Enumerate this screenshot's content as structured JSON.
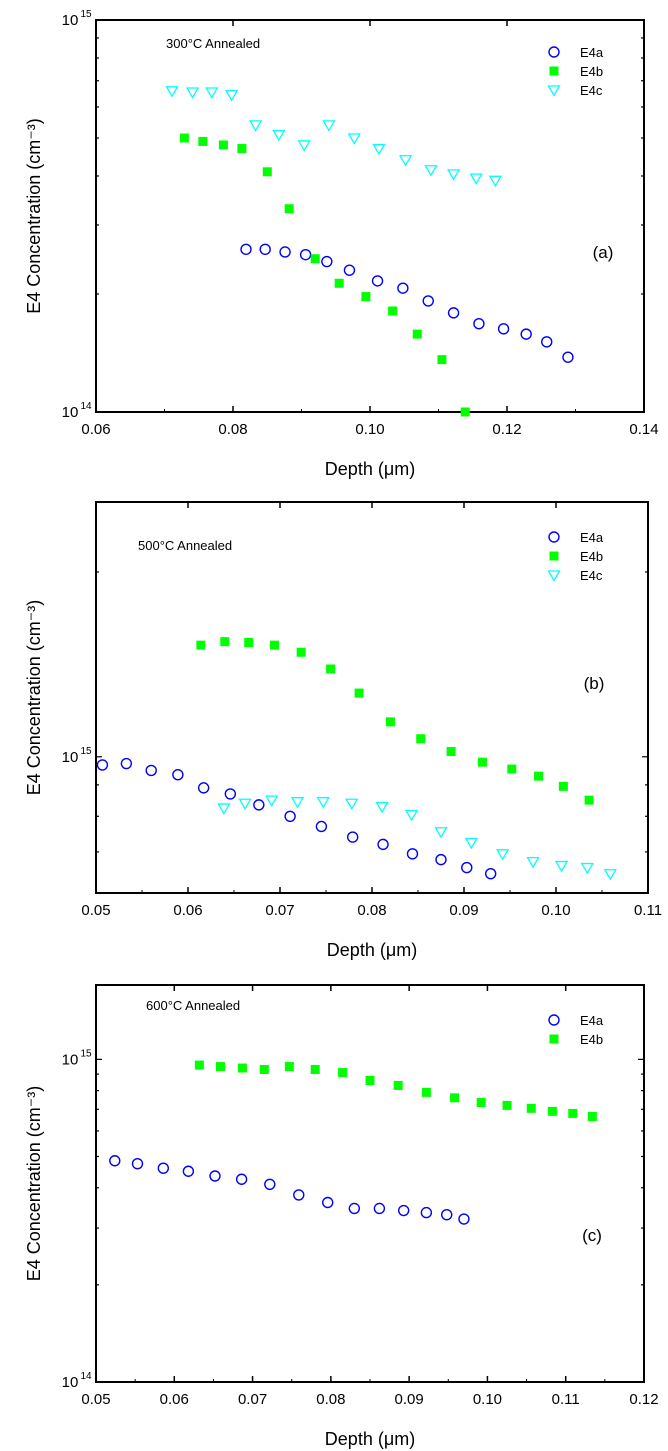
{
  "figure": {
    "xlabel": "Depth (μm)",
    "ylabel": "E4 Concentration (cm⁻³)"
  },
  "chart_data": [
    {
      "type": "scatter",
      "panel_label": "(a)",
      "annotation": "300°C Annealed",
      "xlabel": "Depth (μm)",
      "ylabel": "E4 Concentration (cm⁻³)",
      "xlim": [
        0.06,
        0.14
      ],
      "ylim": [
        100000000000000.0,
        1000000000000000.0
      ],
      "yscale": "log",
      "xticks": [
        0.06,
        0.08,
        0.1,
        0.12,
        0.14
      ],
      "xtick_labels": [
        "0.06",
        "0.08",
        "0.10",
        "0.12",
        "0.14"
      ],
      "yticks": [
        {
          "value": 1000000000000000.0,
          "base": "10",
          "exp": "15"
        },
        {
          "value": 100000000000000.0,
          "base": "10",
          "exp": "14"
        }
      ],
      "legend_position": "top-right",
      "series": [
        {
          "name": "E4a",
          "marker": "circle-open",
          "color": "#0000ff",
          "x": [
            0.0819,
            0.0847,
            0.0876,
            0.0906,
            0.0937,
            0.097,
            0.1011,
            0.1048,
            0.1085,
            0.1122,
            0.1159,
            0.1195,
            0.1228,
            0.1258,
            0.1289
          ],
          "y": [
            260000000000000.0,
            260000000000000.0,
            256000000000000.0,
            252000000000000.0,
            242000000000000.0,
            230000000000000.0,
            216000000000000.0,
            207000000000000.0,
            192000000000000.0,
            179000000000000.0,
            168000000000000.0,
            163000000000000.0,
            158000000000000.0,
            151000000000000.0,
            138000000000000.0
          ]
        },
        {
          "name": "E4b",
          "marker": "square-filled",
          "color": "#00ff00",
          "x": [
            0.0729,
            0.0756,
            0.0786,
            0.0813,
            0.085,
            0.0882,
            0.092,
            0.0955,
            0.0994,
            0.1033,
            0.1069,
            0.1105,
            0.1139
          ],
          "y": [
            500000000000000.0,
            490000000000000.0,
            480000000000000.0,
            470000000000000.0,
            410000000000000.0,
            330000000000000.0,
            246000000000000.0,
            213000000000000.0,
            197000000000000.0,
            181000000000000.0,
            158000000000000.0,
            136000000000000.0,
            100000000000000.0
          ]
        },
        {
          "name": "E4c",
          "marker": "triangle-down-open",
          "color": "#00ffff",
          "x": [
            0.0711,
            0.0741,
            0.0769,
            0.0798,
            0.0833,
            0.0867,
            0.0904,
            0.094,
            0.0977,
            0.1013,
            0.1052,
            0.1089,
            0.1122,
            0.1155,
            0.1183
          ],
          "y": [
            660000000000000.0,
            655000000000000.0,
            655000000000000.0,
            645000000000000.0,
            540000000000000.0,
            510000000000000.0,
            480000000000000.0,
            540000000000000.0,
            500000000000000.0,
            470000000000000.0,
            440000000000000.0,
            415000000000000.0,
            405000000000000.0,
            395000000000000.0,
            390000000000000.0
          ]
        }
      ]
    },
    {
      "type": "scatter",
      "panel_label": "(b)",
      "annotation": "500°C Annealed",
      "xlabel": "Depth (μm)",
      "ylabel": "E4 Concentration (cm⁻³)",
      "xlim": [
        0.05,
        0.11
      ],
      "ylim": [
        600000000000000.0,
        2600000000000000.0
      ],
      "yscale": "log",
      "xticks": [
        0.05,
        0.06,
        0.07,
        0.08,
        0.09,
        0.1,
        0.11
      ],
      "xtick_labels": [
        "0.05",
        "0.06",
        "0.07",
        "0.08",
        "0.09",
        "0.10",
        "0.11"
      ],
      "yticks": [
        {
          "value": 1000000000000000.0,
          "base": "10",
          "exp": "15"
        }
      ],
      "legend_position": "top-right",
      "series": [
        {
          "name": "E4a",
          "marker": "circle-open",
          "color": "#0000ff",
          "x": [
            0.0507,
            0.0533,
            0.056,
            0.0589,
            0.0617,
            0.0646,
            0.0677,
            0.0711,
            0.0745,
            0.0779,
            0.0812,
            0.0844,
            0.0875,
            0.0903,
            0.0929
          ],
          "y": [
            970000000000000.0,
            975000000000000.0,
            950000000000000.0,
            935000000000000.0,
            890000000000000.0,
            870000000000000.0,
            835000000000000.0,
            800000000000000.0,
            770000000000000.0,
            740000000000000.0,
            720000000000000.0,
            695000000000000.0,
            680000000000000.0,
            660000000000000.0,
            645000000000000.0
          ]
        },
        {
          "name": "E4b",
          "marker": "square-filled",
          "color": "#00ff00",
          "x": [
            0.0614,
            0.064,
            0.0666,
            0.0694,
            0.0723,
            0.0755,
            0.0786,
            0.082,
            0.0853,
            0.0886,
            0.092,
            0.0952,
            0.0981,
            0.1008,
            0.1036
          ],
          "y": [
            1520000000000000.0,
            1540000000000000.0,
            1535000000000000.0,
            1520000000000000.0,
            1480000000000000.0,
            1390000000000000.0,
            1270000000000000.0,
            1140000000000000.0,
            1070000000000000.0,
            1020000000000000.0,
            980000000000000.0,
            955000000000000.0,
            930000000000000.0,
            895000000000000.0,
            850000000000000.0
          ]
        },
        {
          "name": "E4c",
          "marker": "triangle-down-open",
          "color": "#00ffff",
          "x": [
            0.0639,
            0.0662,
            0.0691,
            0.0719,
            0.0747,
            0.0778,
            0.0811,
            0.0843,
            0.0875,
            0.0908,
            0.0942,
            0.0975,
            0.1006,
            0.1034,
            0.1059
          ],
          "y": [
            825000000000000.0,
            840000000000000.0,
            850000000000000.0,
            845000000000000.0,
            845000000000000.0,
            840000000000000.0,
            830000000000000.0,
            805000000000000.0,
            755000000000000.0,
            725000000000000.0,
            695000000000000.0,
            675000000000000.0,
            665000000000000.0,
            660000000000000.0,
            645000000000000.0
          ]
        }
      ]
    },
    {
      "type": "scatter",
      "panel_label": "(c)",
      "annotation": "600°C Annealed",
      "xlabel": "Depth (μm)",
      "ylabel": "E4 Concentration (cm⁻³)",
      "xlim": [
        0.05,
        0.12
      ],
      "ylim": [
        100000000000000.0,
        1700000000000000.0
      ],
      "yscale": "log",
      "xticks": [
        0.05,
        0.06,
        0.07,
        0.08,
        0.09,
        0.1,
        0.11,
        0.12
      ],
      "xtick_labels": [
        "0.05",
        "0.06",
        "0.07",
        "0.08",
        "0.09",
        "0.10",
        "0.11",
        "0.12"
      ],
      "yticks": [
        {
          "value": 1000000000000000.0,
          "base": "10",
          "exp": "15"
        },
        {
          "value": 100000000000000.0,
          "base": "10",
          "exp": "14"
        }
      ],
      "legend_position": "top-right",
      "series": [
        {
          "name": "E4a",
          "marker": "circle-open",
          "color": "#0000ff",
          "x": [
            0.0524,
            0.0553,
            0.0586,
            0.0618,
            0.0652,
            0.0686,
            0.0722,
            0.0759,
            0.0796,
            0.083,
            0.0862,
            0.0893,
            0.0922,
            0.0948,
            0.097
          ],
          "y": [
            485000000000000.0,
            475000000000000.0,
            460000000000000.0,
            450000000000000.0,
            435000000000000.0,
            425000000000000.0,
            410000000000000.0,
            380000000000000.0,
            360000000000000.0,
            345000000000000.0,
            345000000000000.0,
            340000000000000.0,
            335000000000000.0,
            330000000000000.0,
            320000000000000.0
          ]
        },
        {
          "name": "E4b",
          "marker": "square-filled",
          "color": "#00ff00",
          "x": [
            0.0632,
            0.0659,
            0.0687,
            0.0715,
            0.0747,
            0.078,
            0.0815,
            0.085,
            0.0886,
            0.0922,
            0.0958,
            0.0992,
            0.1025,
            0.1056,
            0.1083,
            0.1109,
            0.1134
          ],
          "y": [
            960000000000000.0,
            950000000000000.0,
            940000000000000.0,
            930000000000000.0,
            950000000000000.0,
            930000000000000.0,
            910000000000000.0,
            860000000000000.0,
            830000000000000.0,
            790000000000000.0,
            760000000000000.0,
            735000000000000.0,
            720000000000000.0,
            705000000000000.0,
            690000000000000.0,
            680000000000000.0,
            665000000000000.0
          ]
        }
      ]
    }
  ]
}
